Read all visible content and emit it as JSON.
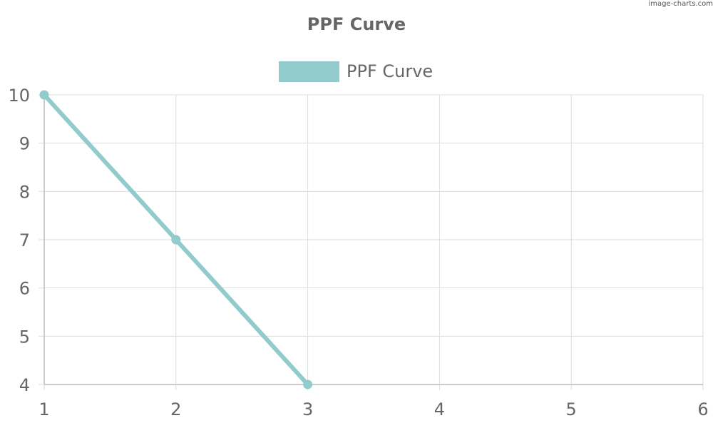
{
  "watermark": "image-charts.com",
  "chart_data": {
    "type": "line",
    "title": "PPF Curve",
    "xlabel": "",
    "ylabel": "",
    "x": [
      1,
      2,
      3
    ],
    "series": [
      {
        "name": "PPF Curve",
        "values": [
          10,
          7,
          4
        ]
      }
    ],
    "x_ticks": [
      "1",
      "2",
      "3",
      "4",
      "5",
      "6"
    ],
    "y_ticks": [
      "4",
      "5",
      "6",
      "7",
      "8",
      "9",
      "10"
    ],
    "xlim": [
      1,
      6
    ],
    "ylim": [
      4,
      10
    ],
    "grid": true,
    "legend_position": "top",
    "colors": {
      "series": "#91cbcb",
      "grid": "#dddddd",
      "axis": "#cccccc",
      "text": "#666666"
    }
  }
}
